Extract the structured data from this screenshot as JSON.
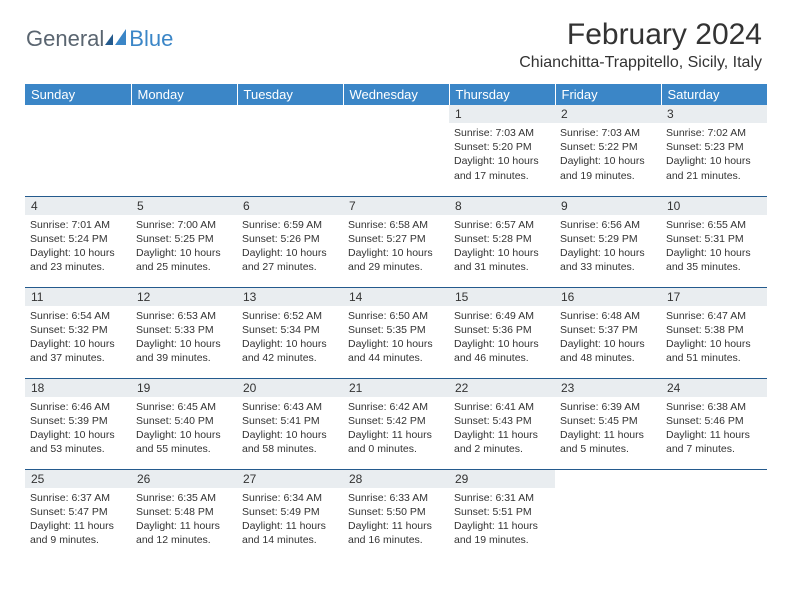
{
  "logo": {
    "text1": "General",
    "text2": "Blue"
  },
  "title": "February 2024",
  "location": "Chianchitta-Trappitello, Sicily, Italy",
  "colors": {
    "header_bg": "#3b86c7",
    "header_text": "#ffffff",
    "daynum_bg": "#e9edf0",
    "row_border": "#245a8d",
    "body_text": "#333333",
    "logo_gray": "#5a6570",
    "logo_blue": "#3b86c7"
  },
  "day_headers": [
    "Sunday",
    "Monday",
    "Tuesday",
    "Wednesday",
    "Thursday",
    "Friday",
    "Saturday"
  ],
  "weeks": [
    [
      null,
      null,
      null,
      null,
      {
        "n": "1",
        "sr": "7:03 AM",
        "ss": "5:20 PM",
        "dl": "10 hours and 17 minutes."
      },
      {
        "n": "2",
        "sr": "7:03 AM",
        "ss": "5:22 PM",
        "dl": "10 hours and 19 minutes."
      },
      {
        "n": "3",
        "sr": "7:02 AM",
        "ss": "5:23 PM",
        "dl": "10 hours and 21 minutes."
      }
    ],
    [
      {
        "n": "4",
        "sr": "7:01 AM",
        "ss": "5:24 PM",
        "dl": "10 hours and 23 minutes."
      },
      {
        "n": "5",
        "sr": "7:00 AM",
        "ss": "5:25 PM",
        "dl": "10 hours and 25 minutes."
      },
      {
        "n": "6",
        "sr": "6:59 AM",
        "ss": "5:26 PM",
        "dl": "10 hours and 27 minutes."
      },
      {
        "n": "7",
        "sr": "6:58 AM",
        "ss": "5:27 PM",
        "dl": "10 hours and 29 minutes."
      },
      {
        "n": "8",
        "sr": "6:57 AM",
        "ss": "5:28 PM",
        "dl": "10 hours and 31 minutes."
      },
      {
        "n": "9",
        "sr": "6:56 AM",
        "ss": "5:29 PM",
        "dl": "10 hours and 33 minutes."
      },
      {
        "n": "10",
        "sr": "6:55 AM",
        "ss": "5:31 PM",
        "dl": "10 hours and 35 minutes."
      }
    ],
    [
      {
        "n": "11",
        "sr": "6:54 AM",
        "ss": "5:32 PM",
        "dl": "10 hours and 37 minutes."
      },
      {
        "n": "12",
        "sr": "6:53 AM",
        "ss": "5:33 PM",
        "dl": "10 hours and 39 minutes."
      },
      {
        "n": "13",
        "sr": "6:52 AM",
        "ss": "5:34 PM",
        "dl": "10 hours and 42 minutes."
      },
      {
        "n": "14",
        "sr": "6:50 AM",
        "ss": "5:35 PM",
        "dl": "10 hours and 44 minutes."
      },
      {
        "n": "15",
        "sr": "6:49 AM",
        "ss": "5:36 PM",
        "dl": "10 hours and 46 minutes."
      },
      {
        "n": "16",
        "sr": "6:48 AM",
        "ss": "5:37 PM",
        "dl": "10 hours and 48 minutes."
      },
      {
        "n": "17",
        "sr": "6:47 AM",
        "ss": "5:38 PM",
        "dl": "10 hours and 51 minutes."
      }
    ],
    [
      {
        "n": "18",
        "sr": "6:46 AM",
        "ss": "5:39 PM",
        "dl": "10 hours and 53 minutes."
      },
      {
        "n": "19",
        "sr": "6:45 AM",
        "ss": "5:40 PM",
        "dl": "10 hours and 55 minutes."
      },
      {
        "n": "20",
        "sr": "6:43 AM",
        "ss": "5:41 PM",
        "dl": "10 hours and 58 minutes."
      },
      {
        "n": "21",
        "sr": "6:42 AM",
        "ss": "5:42 PM",
        "dl": "11 hours and 0 minutes."
      },
      {
        "n": "22",
        "sr": "6:41 AM",
        "ss": "5:43 PM",
        "dl": "11 hours and 2 minutes."
      },
      {
        "n": "23",
        "sr": "6:39 AM",
        "ss": "5:45 PM",
        "dl": "11 hours and 5 minutes."
      },
      {
        "n": "24",
        "sr": "6:38 AM",
        "ss": "5:46 PM",
        "dl": "11 hours and 7 minutes."
      }
    ],
    [
      {
        "n": "25",
        "sr": "6:37 AM",
        "ss": "5:47 PM",
        "dl": "11 hours and 9 minutes."
      },
      {
        "n": "26",
        "sr": "6:35 AM",
        "ss": "5:48 PM",
        "dl": "11 hours and 12 minutes."
      },
      {
        "n": "27",
        "sr": "6:34 AM",
        "ss": "5:49 PM",
        "dl": "11 hours and 14 minutes."
      },
      {
        "n": "28",
        "sr": "6:33 AM",
        "ss": "5:50 PM",
        "dl": "11 hours and 16 minutes."
      },
      {
        "n": "29",
        "sr": "6:31 AM",
        "ss": "5:51 PM",
        "dl": "11 hours and 19 minutes."
      },
      null,
      null
    ]
  ],
  "labels": {
    "sunrise": "Sunrise:",
    "sunset": "Sunset:",
    "daylight": "Daylight:"
  }
}
